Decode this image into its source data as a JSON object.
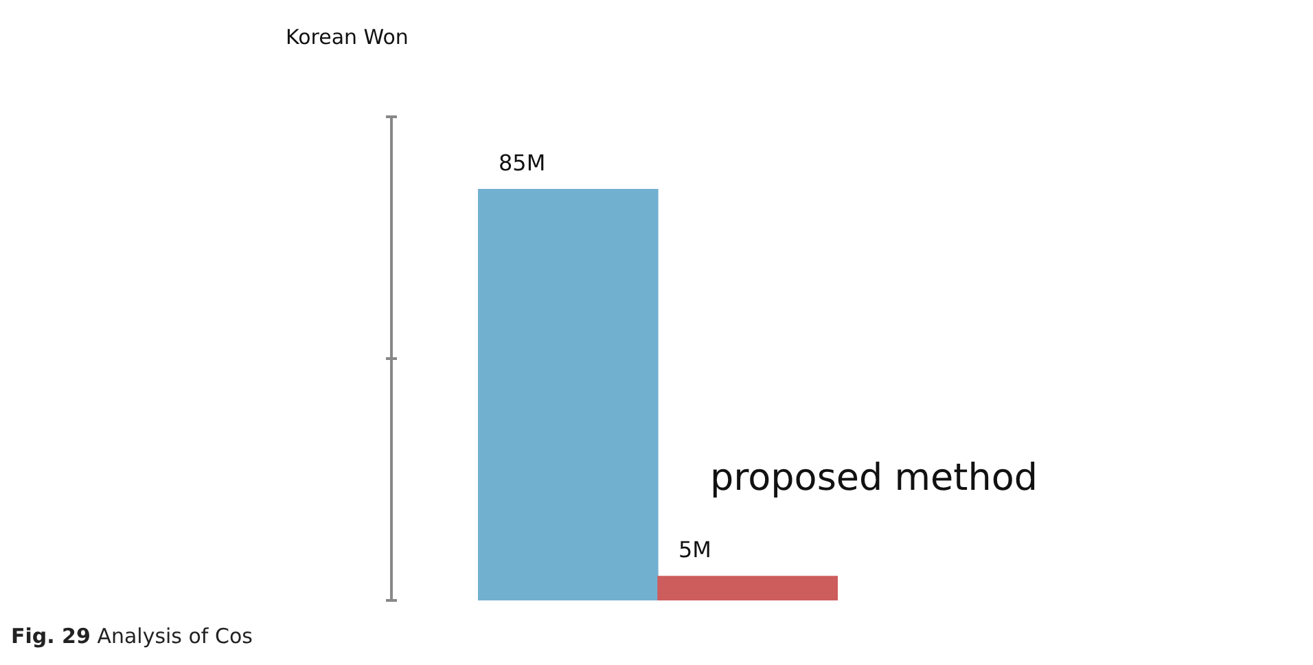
{
  "chart_data": {
    "type": "bar",
    "categories": [
      null,
      null
    ],
    "values": [
      85,
      5
    ],
    "colors": [
      "#72b0d0",
      "#cd5c5c"
    ],
    "value_labels": [
      "85M",
      "5M"
    ],
    "annotations": [
      "Korean Won",
      "proposed method",
      "Fig. 29 Analysis of Cos"
    ]
  }
}
